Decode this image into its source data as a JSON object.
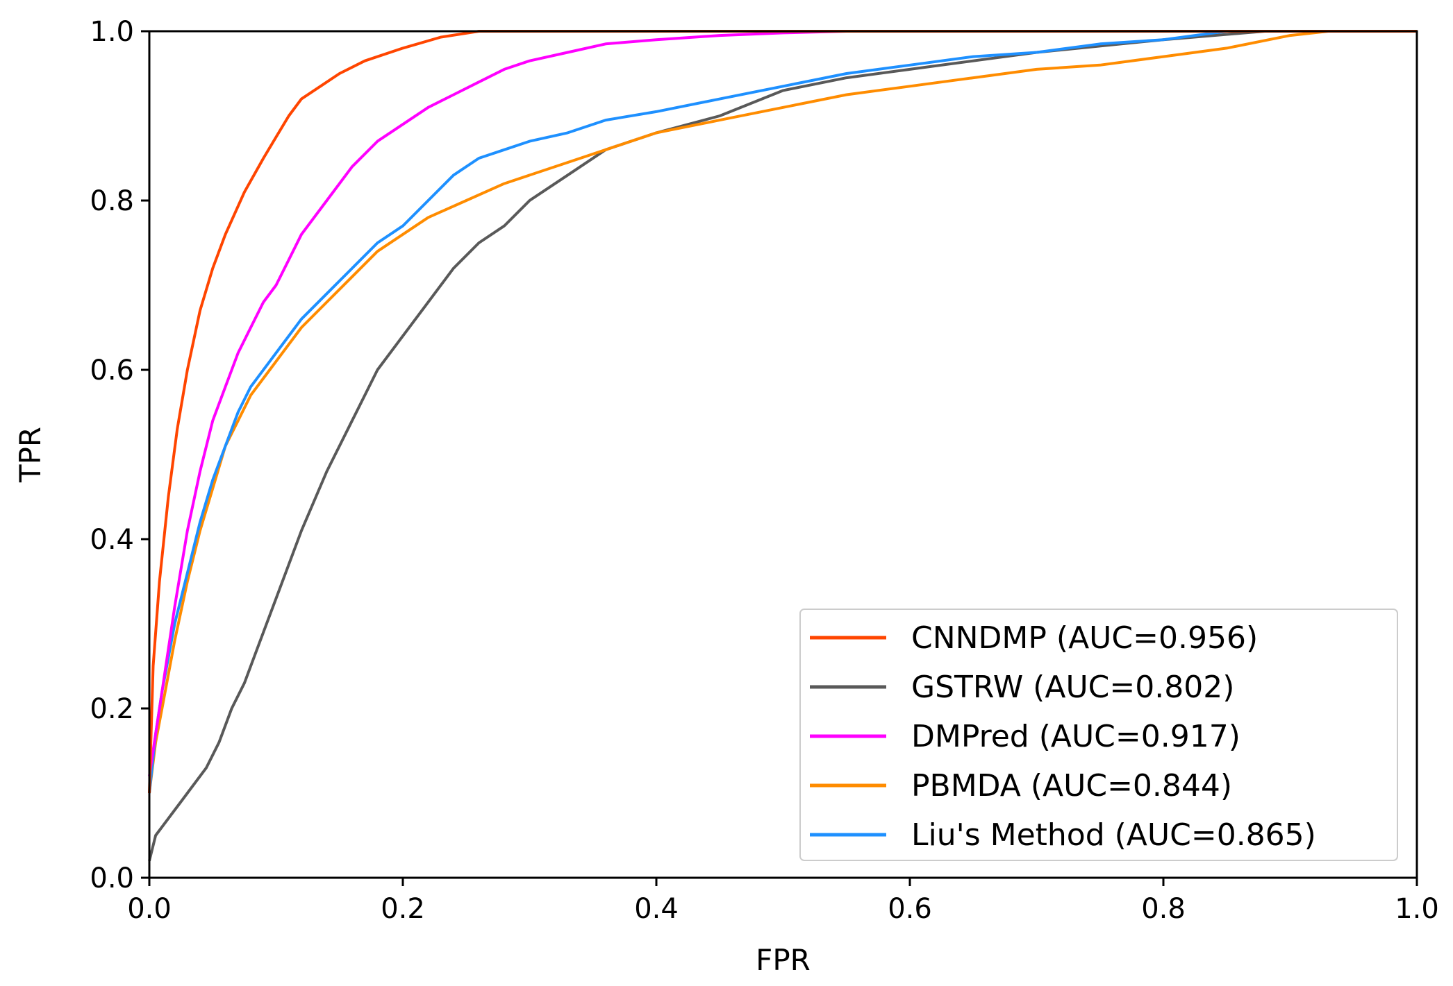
{
  "chart_data": {
    "type": "line",
    "title": "",
    "xlabel": "FPR",
    "ylabel": "TPR",
    "xlim": [
      0.0,
      1.0
    ],
    "ylim": [
      0.0,
      1.0
    ],
    "grid": false,
    "legend_position": "bottom-right",
    "x_ticks": [
      "0.0",
      "0.2",
      "0.4",
      "0.6",
      "0.8",
      "1.0"
    ],
    "y_ticks": [
      "0.0",
      "0.2",
      "0.4",
      "0.6",
      "0.8",
      "1.0"
    ],
    "series": [
      {
        "name": "CNNDMP (AUC=0.956)",
        "color": "#ff4500",
        "x": [
          0,
          0.003,
          0.008,
          0.015,
          0.022,
          0.03,
          0.04,
          0.05,
          0.06,
          0.075,
          0.09,
          0.1,
          0.11,
          0.12,
          0.135,
          0.15,
          0.17,
          0.2,
          0.23,
          0.26,
          0.3,
          0.4,
          0.6,
          1.0
        ],
        "y": [
          0.1,
          0.25,
          0.35,
          0.45,
          0.53,
          0.6,
          0.67,
          0.72,
          0.76,
          0.81,
          0.85,
          0.875,
          0.9,
          0.92,
          0.935,
          0.95,
          0.965,
          0.98,
          0.993,
          1.0,
          1.0,
          1.0,
          1.0,
          1.0
        ]
      },
      {
        "name": "GSTRW (AUC=0.802)",
        "color": "#595959",
        "x": [
          0,
          0.005,
          0.015,
          0.03,
          0.045,
          0.055,
          0.065,
          0.075,
          0.085,
          0.1,
          0.12,
          0.14,
          0.16,
          0.18,
          0.2,
          0.22,
          0.24,
          0.26,
          0.28,
          0.3,
          0.33,
          0.36,
          0.4,
          0.45,
          0.5,
          0.55,
          0.6,
          0.7,
          0.8,
          0.88
        ],
        "y": [
          0.02,
          0.05,
          0.07,
          0.1,
          0.13,
          0.16,
          0.2,
          0.23,
          0.27,
          0.33,
          0.41,
          0.48,
          0.54,
          0.6,
          0.64,
          0.68,
          0.72,
          0.75,
          0.77,
          0.8,
          0.83,
          0.86,
          0.88,
          0.9,
          0.93,
          0.945,
          0.955,
          0.975,
          0.99,
          1.0
        ]
      },
      {
        "name": "DMPred (AUC=0.917)",
        "color": "#ff00ff",
        "x": [
          0,
          0.005,
          0.01,
          0.02,
          0.03,
          0.04,
          0.05,
          0.06,
          0.07,
          0.08,
          0.09,
          0.1,
          0.11,
          0.12,
          0.14,
          0.16,
          0.18,
          0.2,
          0.22,
          0.24,
          0.26,
          0.28,
          0.3,
          0.33,
          0.36,
          0.4,
          0.45,
          0.5,
          0.55,
          0.6
        ],
        "y": [
          0.12,
          0.17,
          0.22,
          0.32,
          0.41,
          0.48,
          0.54,
          0.58,
          0.62,
          0.65,
          0.68,
          0.7,
          0.73,
          0.76,
          0.8,
          0.84,
          0.87,
          0.89,
          0.91,
          0.925,
          0.94,
          0.955,
          0.965,
          0.975,
          0.985,
          0.99,
          0.995,
          0.998,
          1.0,
          1.0
        ]
      },
      {
        "name": "PBMDA (AUC=0.844)",
        "color": "#ff8c00",
        "x": [
          0,
          0.005,
          0.01,
          0.02,
          0.03,
          0.04,
          0.05,
          0.06,
          0.07,
          0.08,
          0.1,
          0.12,
          0.14,
          0.16,
          0.18,
          0.2,
          0.22,
          0.25,
          0.28,
          0.3,
          0.33,
          0.36,
          0.4,
          0.45,
          0.5,
          0.55,
          0.6,
          0.65,
          0.7,
          0.75,
          0.8,
          0.85,
          0.9,
          0.93
        ],
        "y": [
          0.1,
          0.16,
          0.2,
          0.28,
          0.35,
          0.41,
          0.46,
          0.51,
          0.54,
          0.57,
          0.61,
          0.65,
          0.68,
          0.71,
          0.74,
          0.76,
          0.78,
          0.8,
          0.82,
          0.83,
          0.845,
          0.86,
          0.88,
          0.895,
          0.91,
          0.925,
          0.935,
          0.945,
          0.955,
          0.96,
          0.97,
          0.98,
          0.995,
          1.0
        ]
      },
      {
        "name": "Liu's Method (AUC=0.865)",
        "color": "#1e90ff",
        "x": [
          0,
          0.005,
          0.01,
          0.02,
          0.03,
          0.04,
          0.05,
          0.06,
          0.07,
          0.08,
          0.1,
          0.12,
          0.14,
          0.16,
          0.18,
          0.2,
          0.22,
          0.24,
          0.26,
          0.28,
          0.3,
          0.33,
          0.36,
          0.4,
          0.45,
          0.5,
          0.55,
          0.6,
          0.65,
          0.7,
          0.75,
          0.8,
          0.85,
          0.88
        ],
        "y": [
          0.1,
          0.17,
          0.22,
          0.3,
          0.36,
          0.42,
          0.47,
          0.51,
          0.55,
          0.58,
          0.62,
          0.66,
          0.69,
          0.72,
          0.75,
          0.77,
          0.8,
          0.83,
          0.85,
          0.86,
          0.87,
          0.88,
          0.895,
          0.905,
          0.92,
          0.935,
          0.95,
          0.96,
          0.97,
          0.975,
          0.985,
          0.99,
          1.0,
          1.0
        ]
      }
    ]
  }
}
